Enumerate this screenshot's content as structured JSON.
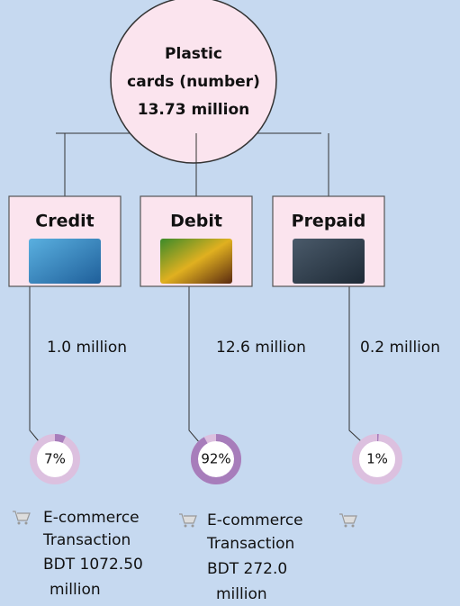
{
  "root": {
    "lines": [
      "Plastic",
      "cards (number)",
      "13.73 million"
    ]
  },
  "nodes": [
    {
      "label": "Credit",
      "count": "1.0 million",
      "share": 7,
      "share_label": "7%",
      "ecommerce": [
        "E-commerce",
        "Transaction",
        "BDT 1072.50",
        "million"
      ]
    },
    {
      "label": "Debit",
      "count": "12.6 million",
      "share": 92,
      "share_label": "92%",
      "ecommerce": [
        "E-commerce",
        "Transaction",
        "BDT 272.0",
        "million"
      ]
    },
    {
      "label": "Prepaid",
      "count": "0.2 million",
      "share": 1,
      "share_label": "1%",
      "ecommerce": []
    }
  ]
}
